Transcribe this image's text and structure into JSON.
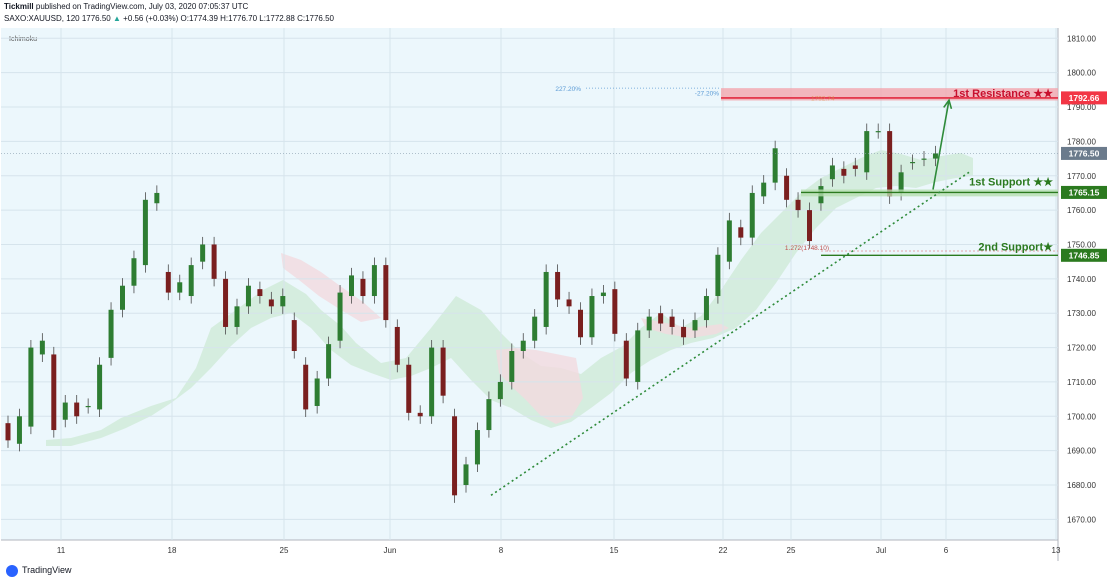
{
  "header": {
    "publisher": "Tickmill",
    "published_text": "published on TradingView.com, July 03, 2020 07:05:37 UTC",
    "symbol": "SAXO:XAUUSD, 120",
    "last": "1776.50",
    "change": "+0.56 (+0.03%)",
    "ohlc": "O:1774.39 H:1776.70 L:1772.88 C:1776.50"
  },
  "footer": {
    "brand": "TradingView",
    "logo_icon": "tradingview-logo-icon"
  },
  "chart_data": {
    "type": "candlestick",
    "indicator_label": "Ichimoku",
    "ylim": [
      1664,
      1813
    ],
    "y_ticks": [
      1670,
      1680,
      1690,
      1700,
      1710,
      1720,
      1730,
      1740,
      1750,
      1760,
      1770,
      1780,
      1790,
      1800,
      1810
    ],
    "x_ticks": [
      "11",
      "18",
      "25",
      "Jun",
      "8",
      "15",
      "22",
      "25",
      "Jul",
      "6",
      "13"
    ],
    "price_tags": [
      {
        "label": "1792.66",
        "value": 1792.66,
        "color": "#f23645"
      },
      {
        "label": "1776.50",
        "value": 1776.5,
        "color": "#6b7b8c"
      },
      {
        "label": "1765.15",
        "value": 1765.15,
        "color": "#2b7a1f"
      },
      {
        "label": "1746.85",
        "value": 1746.85,
        "color": "#2b7a1f"
      }
    ],
    "annotations": {
      "resistance_1": "1st Resistance ★★",
      "support_1": "1st Support ★★",
      "support_2": "2nd Support★",
      "fib_227": "227.20%",
      "fib_neg27": "-27.20%",
      "fib_1272": "1.272(1748.10)",
      "fib_faint": "1792.74"
    },
    "resistance_zone": [
      1791.9,
      1795.5
    ],
    "support_zone": [
      1764.0,
      1766.0
    ],
    "candles": [
      [
        1698.0,
        1693.0
      ],
      [
        1692.0,
        1700.0
      ],
      [
        1697.0,
        1720.0
      ],
      [
        1718.0,
        1722.0
      ],
      [
        1718.0,
        1696.0
      ],
      [
        1699.0,
        1704.0
      ],
      [
        1704.0,
        1700.0
      ],
      [
        1703.0,
        1703.0
      ],
      [
        1702.0,
        1715.0
      ],
      [
        1717.0,
        1731.0
      ],
      [
        1731.0,
        1738.0
      ],
      [
        1738.0,
        1746.0
      ],
      [
        1744.0,
        1763.0
      ],
      [
        1762.0,
        1765.0
      ],
      [
        1742.0,
        1736.0
      ],
      [
        1736.0,
        1739.0
      ],
      [
        1735.0,
        1744.0
      ],
      [
        1745.0,
        1750.0
      ],
      [
        1750.0,
        1740.0
      ],
      [
        1740.0,
        1726.0
      ],
      [
        1726.0,
        1732.0
      ],
      [
        1732.0,
        1738.0
      ],
      [
        1737.0,
        1735.0
      ],
      [
        1734.0,
        1732.0
      ],
      [
        1732.0,
        1735.0
      ],
      [
        1728.0,
        1719.0
      ],
      [
        1715.0,
        1702.0
      ],
      [
        1703.0,
        1711.0
      ],
      [
        1711.0,
        1721.0
      ],
      [
        1722.0,
        1736.0
      ],
      [
        1735.0,
        1741.0
      ],
      [
        1740.0,
        1735.0
      ],
      [
        1735.0,
        1744.0
      ],
      [
        1744.0,
        1728.0
      ],
      [
        1726.0,
        1715.0
      ],
      [
        1715.0,
        1701.0
      ],
      [
        1701.0,
        1700.0
      ],
      [
        1700.0,
        1720.0
      ],
      [
        1720.0,
        1706.0
      ],
      [
        1700.0,
        1677.0
      ],
      [
        1680.0,
        1686.0
      ],
      [
        1686.0,
        1696.0
      ],
      [
        1696.0,
        1705.0
      ],
      [
        1705.0,
        1710.0
      ],
      [
        1710.0,
        1719.0
      ],
      [
        1719.0,
        1722.0
      ],
      [
        1722.0,
        1729.0
      ],
      [
        1726.0,
        1742.0
      ],
      [
        1742.0,
        1734.0
      ],
      [
        1734.0,
        1732.0
      ],
      [
        1731.0,
        1723.0
      ],
      [
        1723.0,
        1735.0
      ],
      [
        1735.0,
        1736.0
      ],
      [
        1737.0,
        1724.0
      ],
      [
        1722.0,
        1711.0
      ],
      [
        1710.0,
        1725.0
      ],
      [
        1725.0,
        1729.0
      ],
      [
        1730.0,
        1727.0
      ],
      [
        1729.0,
        1726.0
      ],
      [
        1726.0,
        1723.0
      ],
      [
        1725.0,
        1728.0
      ],
      [
        1728.0,
        1735.0
      ],
      [
        1735.0,
        1747.0
      ],
      [
        1745.0,
        1757.0
      ],
      [
        1755.0,
        1752.0
      ],
      [
        1752.0,
        1765.0
      ],
      [
        1764.0,
        1768.0
      ],
      [
        1768.0,
        1778.0
      ],
      [
        1770.0,
        1763.0
      ],
      [
        1763.0,
        1760.0
      ],
      [
        1760.0,
        1751.0
      ],
      [
        1762.0,
        1767.0
      ],
      [
        1769.0,
        1773.0
      ],
      [
        1772.0,
        1770.0
      ],
      [
        1773.0,
        1772.0
      ],
      [
        1771.0,
        1783.0
      ],
      [
        1783.0,
        1783.0
      ],
      [
        1783.0,
        1764.0
      ],
      [
        1765.0,
        1771.0
      ],
      [
        1774.0,
        1774.0
      ],
      [
        1775.0,
        1775.0
      ],
      [
        1775.0,
        1776.5
      ]
    ],
    "candle_x_start": 7,
    "candle_x_step": 11.45,
    "trendline": {
      "from_x": 490,
      "from_price": 1677.0,
      "to_x": 968,
      "to_price": 1771.0
    },
    "arrow": {
      "from_x": 932,
      "from_price": 1766.0,
      "to_x": 948,
      "to_price": 1792.0
    }
  }
}
